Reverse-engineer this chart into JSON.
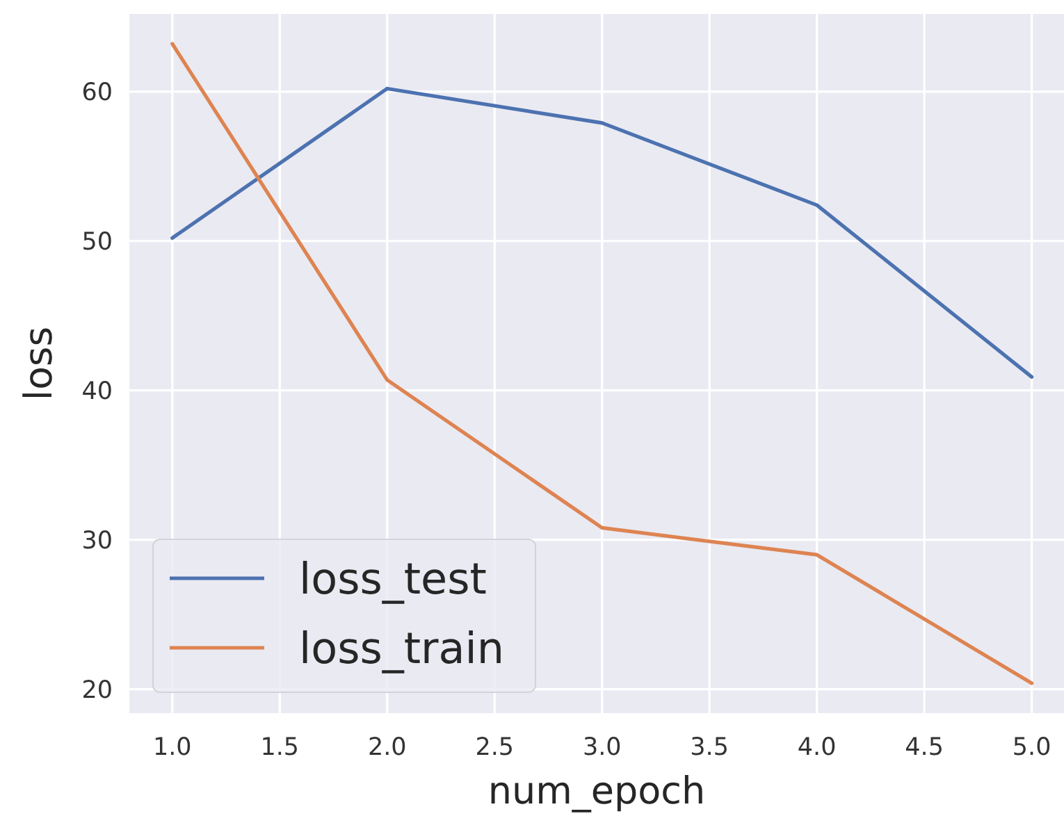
{
  "chart_data": {
    "type": "line",
    "xlabel": "num_epoch",
    "ylabel": "loss",
    "x": [
      1,
      2,
      3,
      4,
      5
    ],
    "series": [
      {
        "name": "loss_test",
        "color": "#4c72b0",
        "values": [
          50.2,
          60.2,
          57.9,
          52.4,
          40.9
        ]
      },
      {
        "name": "loss_train",
        "color": "#dd8452",
        "values": [
          63.2,
          40.7,
          30.8,
          29.0,
          20.4
        ]
      }
    ],
    "xlim": [
      0.8,
      5.15
    ],
    "ylim": [
      18.4,
      65.2
    ],
    "xticks": [
      {
        "value": 1,
        "label": "1.0"
      },
      {
        "value": 1.5,
        "label": "1.5"
      },
      {
        "value": 2,
        "label": "2.0"
      },
      {
        "value": 2.5,
        "label": "2.5"
      },
      {
        "value": 3,
        "label": "3.0"
      },
      {
        "value": 3.5,
        "label": "3.5"
      },
      {
        "value": 4,
        "label": "4.0"
      },
      {
        "value": 4.5,
        "label": "4.5"
      },
      {
        "value": 5,
        "label": "5.0"
      }
    ],
    "yticks": [
      20,
      30,
      40,
      50,
      60
    ],
    "grid": true,
    "legend": "bottom left"
  }
}
